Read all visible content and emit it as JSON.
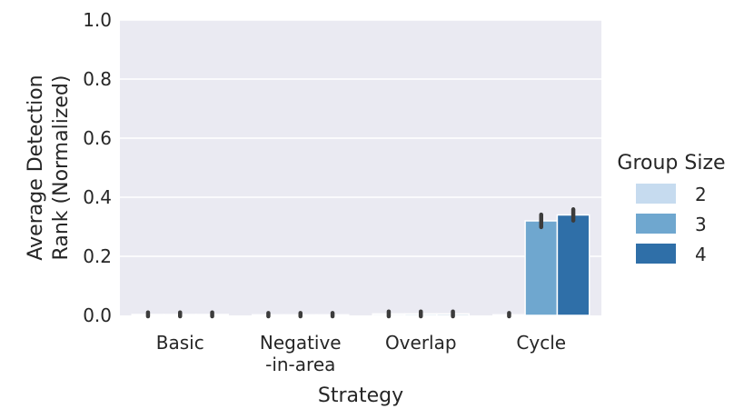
{
  "chart_data": {
    "type": "bar",
    "xlabel": "Strategy",
    "ylabel": [
      "Average Detection",
      "Rank (Normalized)"
    ],
    "ylim": [
      0,
      1
    ],
    "yticks": [
      "0.0",
      "0.2",
      "0.4",
      "0.6",
      "0.8",
      "1.0"
    ],
    "grid": true,
    "categories": [
      [
        "Basic"
      ],
      [
        "Negative",
        "-in-area"
      ],
      [
        "Overlap"
      ],
      [
        "Cycle"
      ]
    ],
    "legend": {
      "title": "Group Size",
      "placement": "right"
    },
    "series": [
      {
        "name": "2",
        "color": "#c6dbef",
        "values": [
          0.003,
          0.002,
          0.005,
          0.002
        ],
        "err": [
          0.004,
          0.003,
          0.005,
          0.003
        ]
      },
      {
        "name": "3",
        "color": "#6fa7cf",
        "values": [
          0.003,
          0.002,
          0.005,
          0.32
        ],
        "err": [
          0.004,
          0.003,
          0.005,
          0.018
        ]
      },
      {
        "name": "4",
        "color": "#2f6fa8",
        "values": [
          0.003,
          0.002,
          0.005,
          0.34
        ],
        "err": [
          0.004,
          0.003,
          0.005,
          0.016
        ]
      }
    ]
  }
}
